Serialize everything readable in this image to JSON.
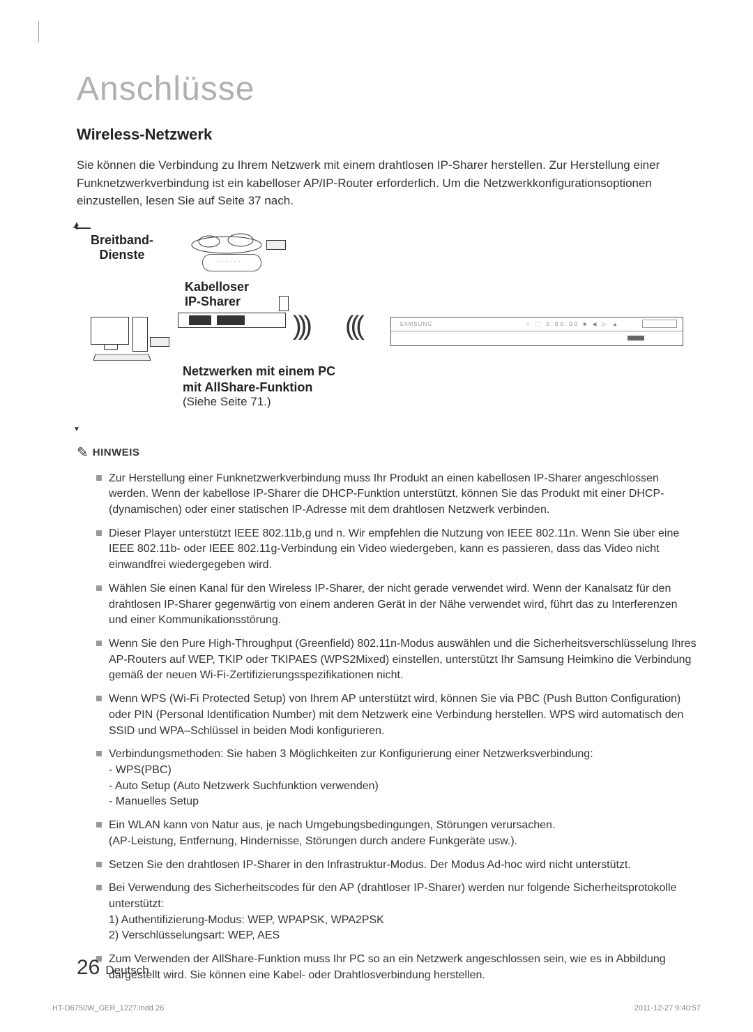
{
  "chapter_title": "Anschlüsse",
  "section_title": "Wireless-Netzwerk",
  "intro": "Sie können die Verbindung zu Ihrem Netzwerk mit einem drahtlosen IP-Sharer herstellen. Zur Herstellung einer Funknetzwerkverbindung ist ein kabelloser AP/IP-Router erforderlich. Um die Netzwerkkonfigurationsoptionen einzustellen, lesen Sie auf Seite 37 nach.",
  "diagram": {
    "breitband_l1": "Breitband-",
    "breitband_l2": "Dienste",
    "kabelloser_l1": "Kabelloser",
    "kabelloser_l2": "IP-Sharer",
    "pc": "PC",
    "netzwerken_l1": "Netzwerken mit einem PC",
    "netzwerken_l2": "mit AllShare-Funktion",
    "siehe": "(Siehe Seite 71.)",
    "brand": "SAMSUNG",
    "display": "○ ⬚   0:00:00 ■ ◀ ▷ ▲"
  },
  "hinweis": {
    "icon": "✎",
    "label": "HINWEIS"
  },
  "notes": [
    "Zur Herstellung einer Funknetzwerkverbindung muss Ihr Produkt an einen kabellosen IP-Sharer angeschlossen werden. Wenn der kabellose IP-Sharer die DHCP-Funktion unterstützt, können Sie das Produkt mit einer DHCP- (dynamischen) oder einer statischen IP-Adresse mit dem drahtlosen Netzwerk verbinden.",
    "Dieser Player unterstützt IEEE 802.11b,g und n. Wir empfehlen die Nutzung von IEEE 802.11n. Wenn Sie über eine IEEE 802.11b- oder IEEE 802.11g-Verbindung ein Video wiedergeben, kann es passieren, dass das Video nicht einwandfrei wiedergegeben wird.",
    "Wählen Sie einen Kanal für den Wireless IP-Sharer, der nicht gerade verwendet wird. Wenn der Kanalsatz für den drahtlosen IP-Sharer gegenwärtig von einem anderen Gerät in der Nähe verwendet wird, führt das zu Interferenzen und einer Kommunikationsstörung.",
    "Wenn Sie den Pure High-Throughput (Greenfield) 802.11n-Modus auswählen und die Sicherheitsverschlüsselung Ihres AP-Routers auf WEP, TKIP oder TKIPAES (WPS2Mixed) einstellen, unterstützt Ihr Samsung Heimkino die Verbindung gemäß der neuen Wi-Fi-Zertifizierungsspezifikationen nicht.",
    "Wenn WPS (Wi-Fi Protected Setup) von Ihrem AP unterstützt wird, können Sie via PBC (Push Button Configuration) oder PIN (Personal Identification Number) mit dem Netzwerk eine Verbindung herstellen. WPS wird automatisch den SSID und WPA–Schlüssel in beiden Modi konfigurieren.",
    "Verbindungsmethoden: Sie haben 3 Möglichkeiten zur Konfigurierung einer Netzwerksverbindung:\n- WPS(PBC)\n- Auto Setup (Auto Netzwerk Suchfunktion verwenden)\n- Manuelles Setup",
    "Ein WLAN kann von Natur aus, je nach Umgebungsbedingungen, Störungen verursachen.\n(AP-Leistung, Entfernung, Hindernisse, Störungen durch andere Funkgeräte usw.).",
    "Setzen Sie den drahtlosen IP-Sharer in den Infrastruktur-Modus. Der Modus Ad-hoc wird nicht unterstützt.",
    "Bei Verwendung des Sicherheitscodes für den AP (drahtloser IP-Sharer) werden nur folgende Sicherheitsprotokolle unterstützt:\n 1)  Authentifizierung-Modus: WEP, WPAPSK, WPA2PSK\n 2)  Verschlüsselungsart: WEP, AES",
    "Zum Verwenden der AllShare-Funktion muss Ihr PC so an ein Netzwerk angeschlossen sein, wie es in Abbildung dargestellt wird. Sie können eine Kabel- oder Drahtlosverbindung herstellen."
  ],
  "footer": {
    "page_num": "26",
    "lang": "Deutsch",
    "print_file": "HT-D6750W_GER_1227.indd   26",
    "print_time": "2011-12-27    9:40:57"
  }
}
